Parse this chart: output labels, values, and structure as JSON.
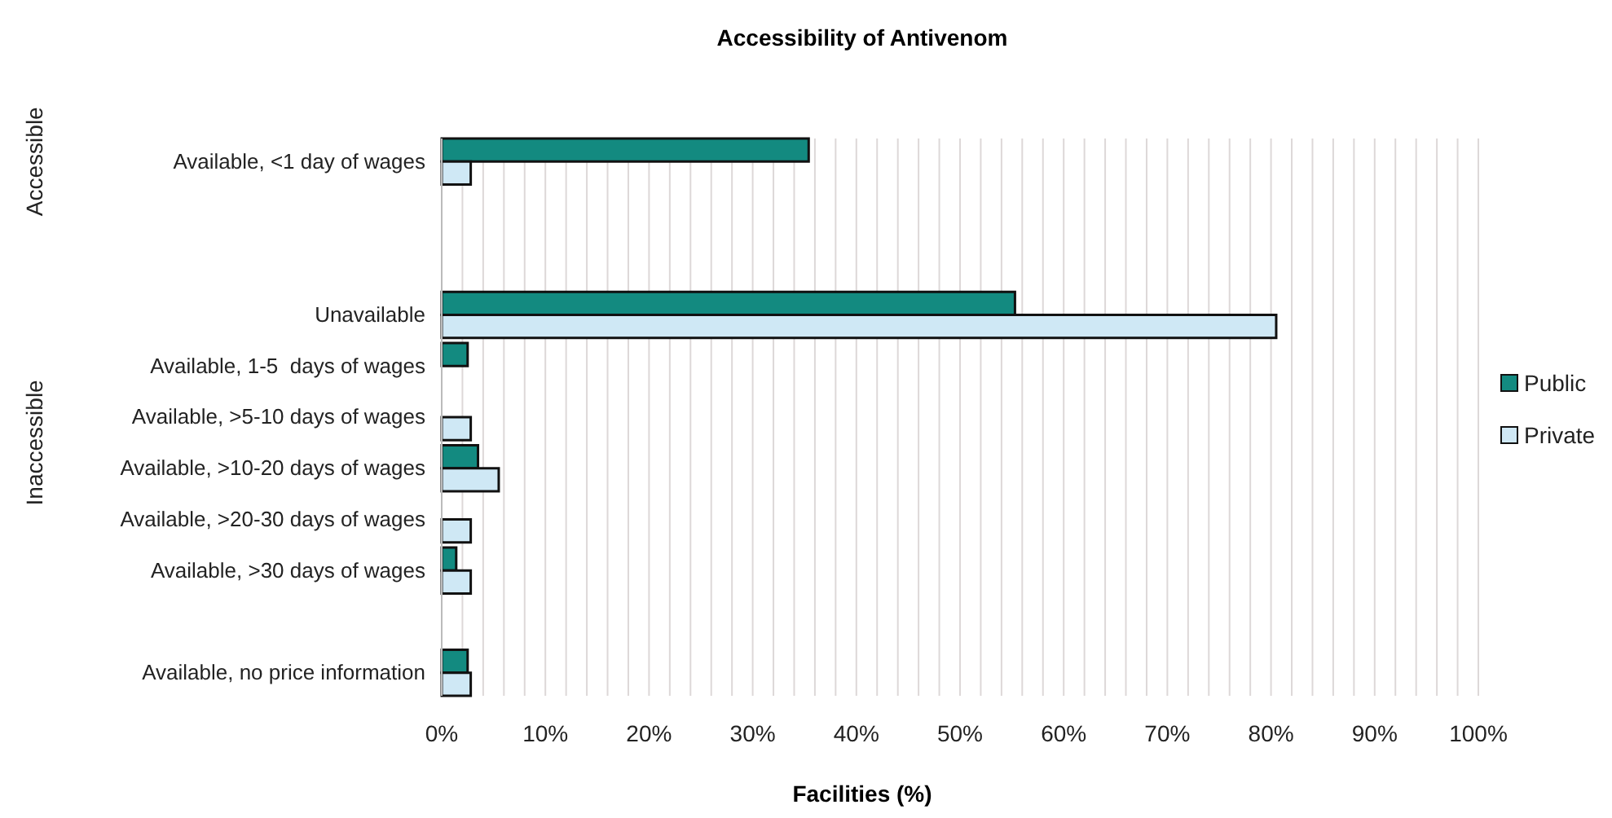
{
  "chart_data": {
    "type": "bar",
    "orientation": "horizontal",
    "title": "Accessibility of Antivenom",
    "xlabel": "Facilities (%)",
    "categories": [
      "Available, <1 day of wages",
      null,
      null,
      "Unavailable",
      "Available, 1-5  days of wages",
      "Available, >5-10 days of wages",
      "Available, >10-20 days of wages",
      "Available, >20-30 days of wages",
      "Available, >30 days of wages",
      null,
      "Available, no price information"
    ],
    "series": [
      {
        "name": "Public",
        "color": "#138a80",
        "values": [
          35.4,
          null,
          null,
          55.3,
          2.5,
          0,
          3.5,
          0,
          1.4,
          null,
          2.5
        ]
      },
      {
        "name": "Private",
        "color": "#cfe8f5",
        "values": [
          2.8,
          null,
          null,
          80.5,
          0,
          2.8,
          5.5,
          2.8,
          2.8,
          null,
          2.8
        ]
      }
    ],
    "xlim": [
      0,
      100
    ],
    "xticks": [
      {
        "value": 0,
        "label": "0%"
      },
      {
        "value": 2,
        "label": null
      },
      {
        "value": 4,
        "label": null
      },
      {
        "value": 6,
        "label": null
      },
      {
        "value": 8,
        "label": null
      },
      {
        "value": 10,
        "label": "10%"
      },
      {
        "value": 12,
        "label": null
      },
      {
        "value": 14,
        "label": null
      },
      {
        "value": 16,
        "label": null
      },
      {
        "value": 18,
        "label": null
      },
      {
        "value": 20,
        "label": "20%"
      },
      {
        "value": 22,
        "label": null
      },
      {
        "value": 24,
        "label": null
      },
      {
        "value": 26,
        "label": null
      },
      {
        "value": 28,
        "label": null
      },
      {
        "value": 30,
        "label": "30%"
      },
      {
        "value": 32,
        "label": null
      },
      {
        "value": 34,
        "label": null
      },
      {
        "value": 36,
        "label": null
      },
      {
        "value": 38,
        "label": null
      },
      {
        "value": 40,
        "label": "40%"
      },
      {
        "value": 42,
        "label": null
      },
      {
        "value": 44,
        "label": null
      },
      {
        "value": 46,
        "label": null
      },
      {
        "value": 48,
        "label": null
      },
      {
        "value": 50,
        "label": "50%"
      },
      {
        "value": 52,
        "label": null
      },
      {
        "value": 54,
        "label": null
      },
      {
        "value": 56,
        "label": null
      },
      {
        "value": 58,
        "label": null
      },
      {
        "value": 60,
        "label": "60%"
      },
      {
        "value": 62,
        "label": null
      },
      {
        "value": 64,
        "label": null
      },
      {
        "value": 66,
        "label": null
      },
      {
        "value": 68,
        "label": null
      },
      {
        "value": 70,
        "label": "70%"
      },
      {
        "value": 72,
        "label": null
      },
      {
        "value": 74,
        "label": null
      },
      {
        "value": 76,
        "label": null
      },
      {
        "value": 78,
        "label": null
      },
      {
        "value": 80,
        "label": "80%"
      },
      {
        "value": 82,
        "label": null
      },
      {
        "value": 84,
        "label": null
      },
      {
        "value": 86,
        "label": null
      },
      {
        "value": 88,
        "label": null
      },
      {
        "value": 90,
        "label": "90%"
      },
      {
        "value": 92,
        "label": null
      },
      {
        "value": 94,
        "label": null
      },
      {
        "value": 96,
        "label": null
      },
      {
        "value": 98,
        "label": null
      },
      {
        "value": 100,
        "label": "100%"
      }
    ],
    "grid": "x",
    "legend": "right",
    "annotations": [
      "Accessible",
      "Inaccessible"
    ]
  }
}
